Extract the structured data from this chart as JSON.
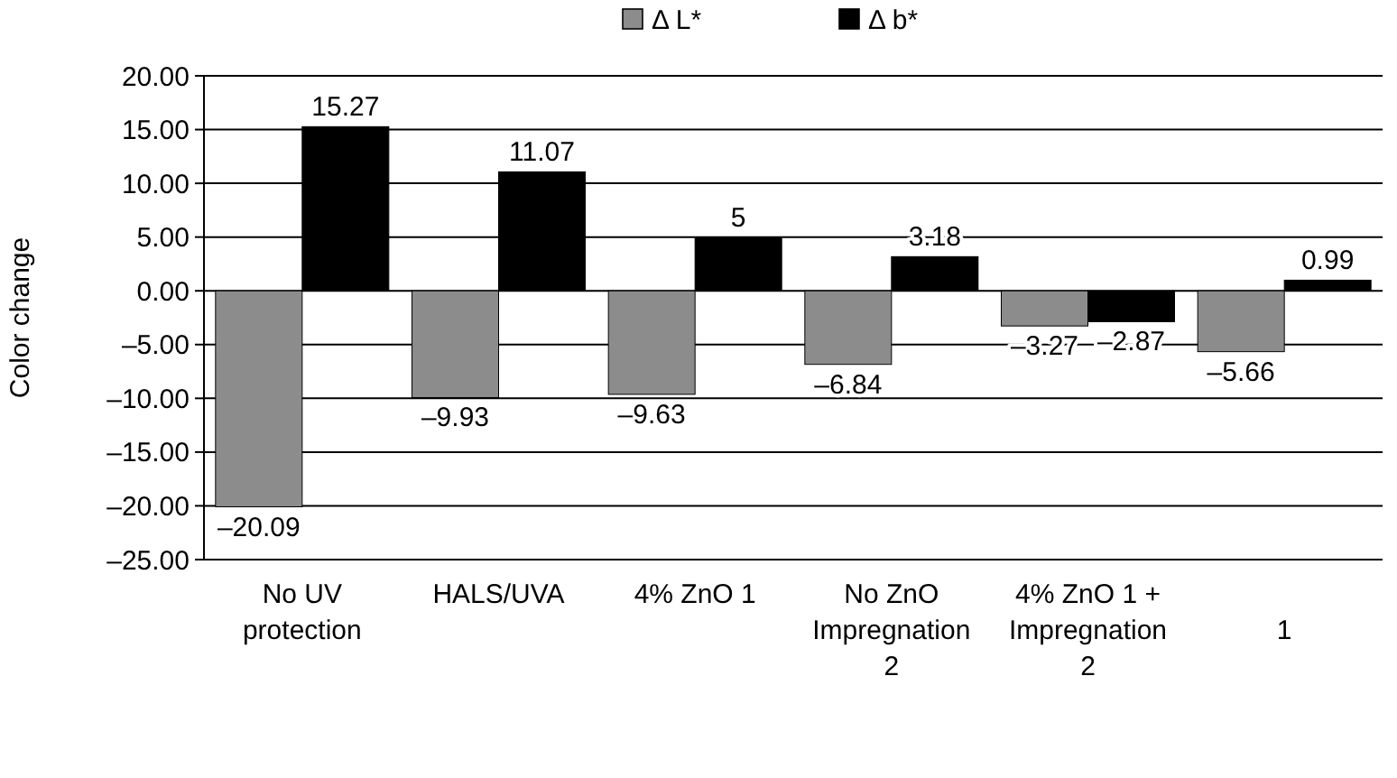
{
  "chart_data": {
    "type": "bar",
    "ylabel": "Color change",
    "categories": [
      "No UV\nprotection",
      "HALS/UVA",
      "4% ZnO 1",
      "No ZnO\nImpregnation\n\n2",
      "4% ZnO 1 +\nImpregnation\n\n2",
      "\n\n\n1"
    ],
    "series": [
      {
        "name": "Δ L*",
        "color": "#8c8c8c",
        "values": [
          -20.09,
          -9.93,
          -9.63,
          -6.84,
          -3.27,
          -5.66
        ],
        "value_labels": [
          "–20.09",
          "–9.93",
          "–9.63",
          "–6.84",
          "–3.27",
          "–5.66"
        ]
      },
      {
        "name": "Δ b*",
        "color": "#000000",
        "values": [
          15.27,
          11.07,
          5,
          3.18,
          -2.87,
          0.99
        ],
        "value_labels": [
          "15.27",
          "11.07",
          "5",
          "3.18",
          "–2.87",
          "0.99"
        ]
      }
    ],
    "ylim": [
      -25,
      20
    ],
    "yticks": [
      {
        "value": -25,
        "label": "–25.00"
      },
      {
        "value": -20,
        "label": "–20.00"
      },
      {
        "value": -15,
        "label": "–15.00"
      },
      {
        "value": -10,
        "label": "–10.00"
      },
      {
        "value": -5,
        "label": "–5.00"
      },
      {
        "value": 0,
        "label": "0.00"
      },
      {
        "value": 5,
        "label": "5.00"
      },
      {
        "value": 10,
        "label": "10.00"
      },
      {
        "value": 15,
        "label": "15.00"
      },
      {
        "value": 20,
        "label": "20.00"
      }
    ],
    "grid": "y",
    "legend": "top"
  }
}
